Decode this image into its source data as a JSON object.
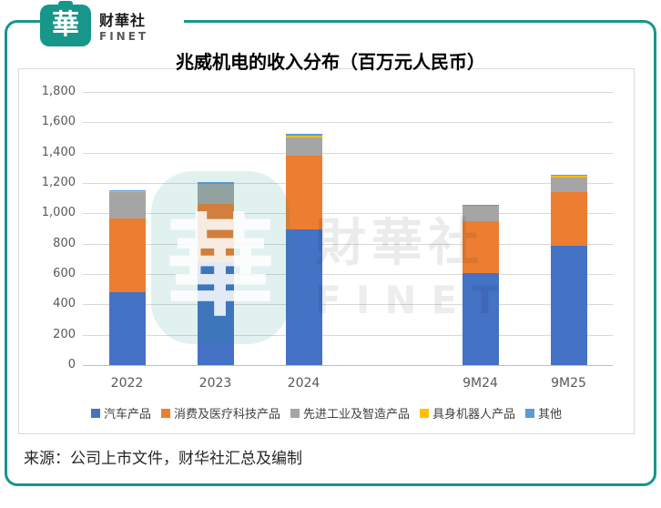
{
  "brand": {
    "seal_glyph": "華",
    "name_cn": "财華社",
    "name_en": "FINET",
    "teal": "#17968A"
  },
  "title": "兆威机电的收入分布（百万元人民币）",
  "source_note": "来源：公司上市文件，财华社汇总及编制",
  "watermark": {
    "seal_glyph": "華",
    "text_cn": "財華社",
    "text_en": "FINET"
  },
  "chart_data": {
    "type": "bar",
    "stacked": true,
    "title": "兆威机电的收入分布（百万元人民币）",
    "categories": [
      "2022",
      "2023",
      "2024",
      "9M24",
      "9M25"
    ],
    "slot_index": [
      0,
      1,
      2,
      4,
      5
    ],
    "slots_total": 6,
    "series": [
      {
        "name": "汽车产品",
        "color": "#4472C4",
        "values": [
          480,
          680,
          893,
          605,
          785
        ]
      },
      {
        "name": "消费及医疗科技产品",
        "color": "#ED7D31",
        "values": [
          485,
          385,
          487,
          345,
          355
        ]
      },
      {
        "name": "先进工业及智造产品",
        "color": "#A5A5A5",
        "values": [
          175,
          130,
          120,
          100,
          95
        ]
      },
      {
        "name": "具身机器人产品",
        "color": "#FFC000",
        "values": [
          8,
          0,
          13,
          0,
          12
        ]
      },
      {
        "name": "其他",
        "color": "#5B9BD5",
        "values": [
          5,
          10,
          12,
          8,
          10
        ]
      }
    ],
    "totals": [
      1153,
      1205,
      1525,
      1058,
      1257
    ],
    "ylim": [
      0,
      1800
    ],
    "ytick_step": 200,
    "ytick_labels": [
      "0",
      "200",
      "400",
      "600",
      "800",
      "1,000",
      "1,200",
      "1,400",
      "1,600",
      "1,800"
    ],
    "grid": true,
    "legend_position": "bottom",
    "grid_color": "#D9D9D9"
  }
}
